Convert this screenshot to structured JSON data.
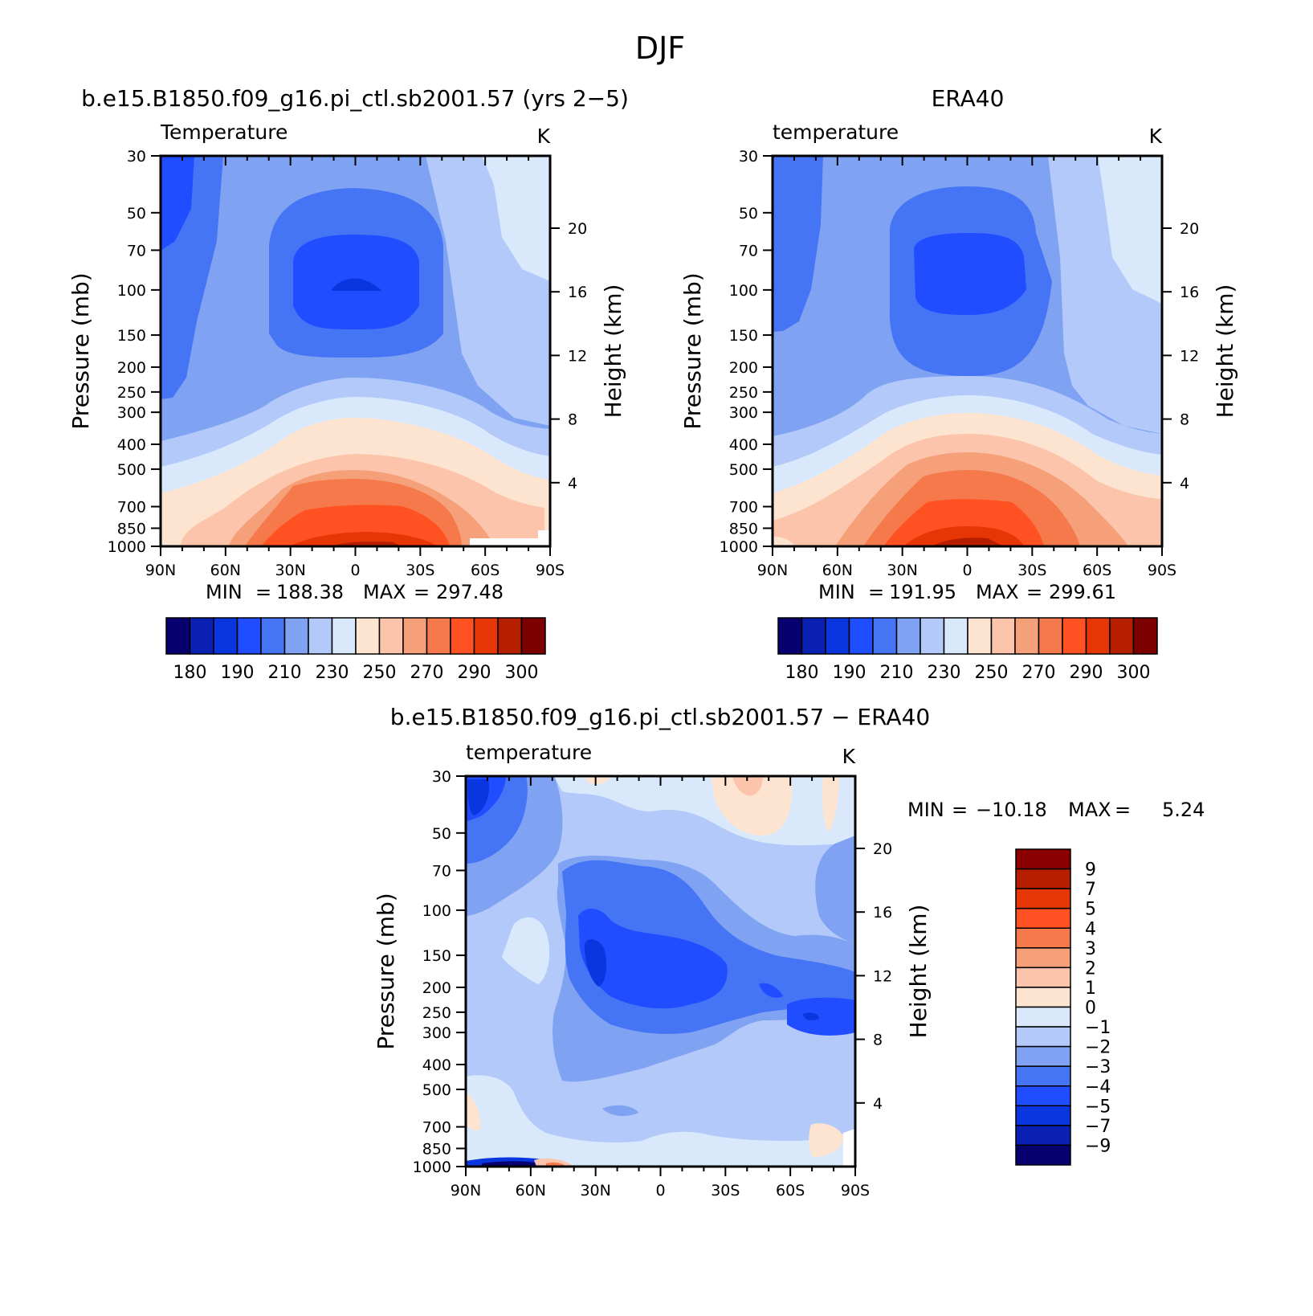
{
  "figure": {
    "title": "DJF"
  },
  "chart_data": [
    {
      "id": "model",
      "type": "contour",
      "title": "b.e15.B1850.f09_g16.pi_ctl.sb2001.57 (yrs 2−5)",
      "left_label": "Temperature",
      "right_label": "K",
      "ylabel": "Pressure (mb)",
      "ylabel_right": "Height (km)",
      "x_ticks": [
        "90N",
        "60N",
        "30N",
        "0",
        "30S",
        "60S",
        "90S"
      ],
      "y_ticks": [
        "30",
        "50",
        "70",
        "100",
        "150",
        "200",
        "250",
        "300",
        "400",
        "500",
        "700",
        "850",
        "1000"
      ],
      "height_ticks": [
        "20",
        "16",
        "12",
        "8",
        "4"
      ],
      "stats": {
        "min_label": "MIN",
        "min": "188.38",
        "max_label": "MAX",
        "max": "297.48"
      },
      "colorbar": {
        "orientation": "horizontal",
        "labels": [
          "180",
          "190",
          "210",
          "230",
          "250",
          "270",
          "290",
          "300"
        ],
        "colors": [
          "#08006e",
          "#0a21b3",
          "#0a36e0",
          "#1f4dff",
          "#4574f5",
          "#7fa3f2",
          "#b2c9fa",
          "#d9e9fb",
          "#fde4d0",
          "#fcc5ab",
          "#f6a07a",
          "#f5794b",
          "#ff5122",
          "#e63606",
          "#b51f00",
          "#7c0000"
        ]
      },
      "grid": false
    },
    {
      "id": "obs",
      "type": "contour",
      "title": "ERA40",
      "left_label": "temperature",
      "right_label": "K",
      "ylabel": "Pressure (mb)",
      "ylabel_right": "Height (km)",
      "x_ticks": [
        "90N",
        "60N",
        "30N",
        "0",
        "30S",
        "60S",
        "90S"
      ],
      "y_ticks": [
        "30",
        "50",
        "70",
        "100",
        "150",
        "200",
        "250",
        "300",
        "400",
        "500",
        "700",
        "850",
        "1000"
      ],
      "height_ticks": [
        "20",
        "16",
        "12",
        "8",
        "4"
      ],
      "stats": {
        "min_label": "MIN",
        "min": "191.95",
        "max_label": "MAX",
        "max": "299.61"
      },
      "colorbar": {
        "orientation": "horizontal",
        "labels": [
          "180",
          "190",
          "210",
          "230",
          "250",
          "270",
          "290",
          "300"
        ],
        "colors": [
          "#08006e",
          "#0a21b3",
          "#0a36e0",
          "#1f4dff",
          "#4574f5",
          "#7fa3f2",
          "#b2c9fa",
          "#d9e9fb",
          "#fde4d0",
          "#fcc5ab",
          "#f6a07a",
          "#f5794b",
          "#ff5122",
          "#e63606",
          "#b51f00",
          "#7c0000"
        ]
      },
      "grid": false
    },
    {
      "id": "diff",
      "type": "contour",
      "title": "b.e15.B1850.f09_g16.pi_ctl.sb2001.57 − ERA40",
      "left_label": "temperature",
      "right_label": "K",
      "ylabel": "Pressure (mb)",
      "ylabel_right": "Height (km)",
      "x_ticks": [
        "90N",
        "60N",
        "30N",
        "0",
        "30S",
        "60S",
        "90S"
      ],
      "y_ticks": [
        "30",
        "50",
        "70",
        "100",
        "150",
        "200",
        "250",
        "300",
        "400",
        "500",
        "700",
        "850",
        "1000"
      ],
      "height_ticks": [
        "20",
        "16",
        "12",
        "8",
        "4"
      ],
      "stats": {
        "min_label": "MIN",
        "min": "−10.18",
        "max_label": "MAX",
        "max": "5.24"
      },
      "colorbar": {
        "orientation": "vertical",
        "labels": [
          "9",
          "7",
          "5",
          "4",
          "3",
          "2",
          "1",
          "0",
          "−1",
          "−2",
          "−3",
          "−4",
          "−5",
          "−7",
          "−9"
        ],
        "colors": [
          "#8a0000",
          "#b51f00",
          "#e63606",
          "#ff5122",
          "#f5794b",
          "#f6a07a",
          "#fcc5ab",
          "#fde4d0",
          "#d9e9fb",
          "#b2c9fa",
          "#7fa3f2",
          "#4574f5",
          "#1f4dff",
          "#0a36e0",
          "#0a21b3",
          "#08006e"
        ]
      },
      "grid": false
    }
  ]
}
